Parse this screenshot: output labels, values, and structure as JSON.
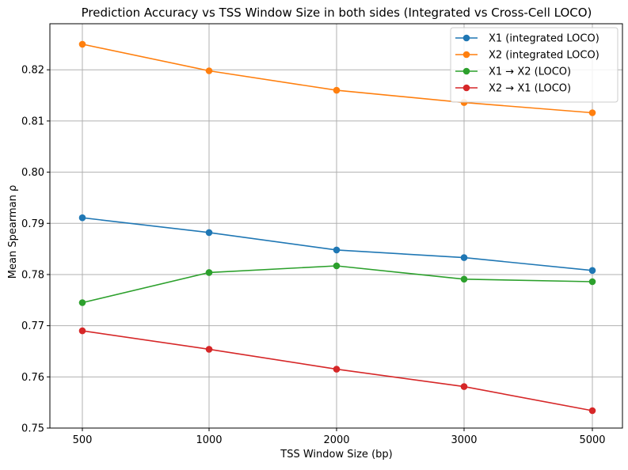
{
  "chart_data": {
    "type": "line",
    "title": "Prediction Accuracy vs TSS Window Size in both sides (Integrated vs Cross-Cell LOCO)",
    "xlabel": "TSS Window Size (bp)",
    "ylabel": "Mean Spearman ρ",
    "categories": [
      "500",
      "1000",
      "2000",
      "3000",
      "5000"
    ],
    "ylim": [
      0.75,
      0.829
    ],
    "yticks": [
      "0.75",
      "0.76",
      "0.77",
      "0.78",
      "0.79",
      "0.80",
      "0.81",
      "0.82"
    ],
    "grid": true,
    "legend_position": "top-right",
    "series": [
      {
        "name": "X1 (integrated LOCO)",
        "color": "#1f77b4",
        "values": [
          0.7911,
          0.7882,
          0.7848,
          0.7833,
          0.7808
        ]
      },
      {
        "name": "X2 (integrated LOCO)",
        "color": "#ff7f0e",
        "values": [
          0.825,
          0.8198,
          0.816,
          0.8136,
          0.8116
        ]
      },
      {
        "name": "X1 → X2 (LOCO)",
        "color": "#2ca02c",
        "values": [
          0.7745,
          0.7804,
          0.7817,
          0.7791,
          0.7786
        ]
      },
      {
        "name": "X2 → X1 (LOCO)",
        "color": "#d62728",
        "values": [
          0.769,
          0.7654,
          0.7615,
          0.7581,
          0.7534
        ]
      }
    ]
  }
}
